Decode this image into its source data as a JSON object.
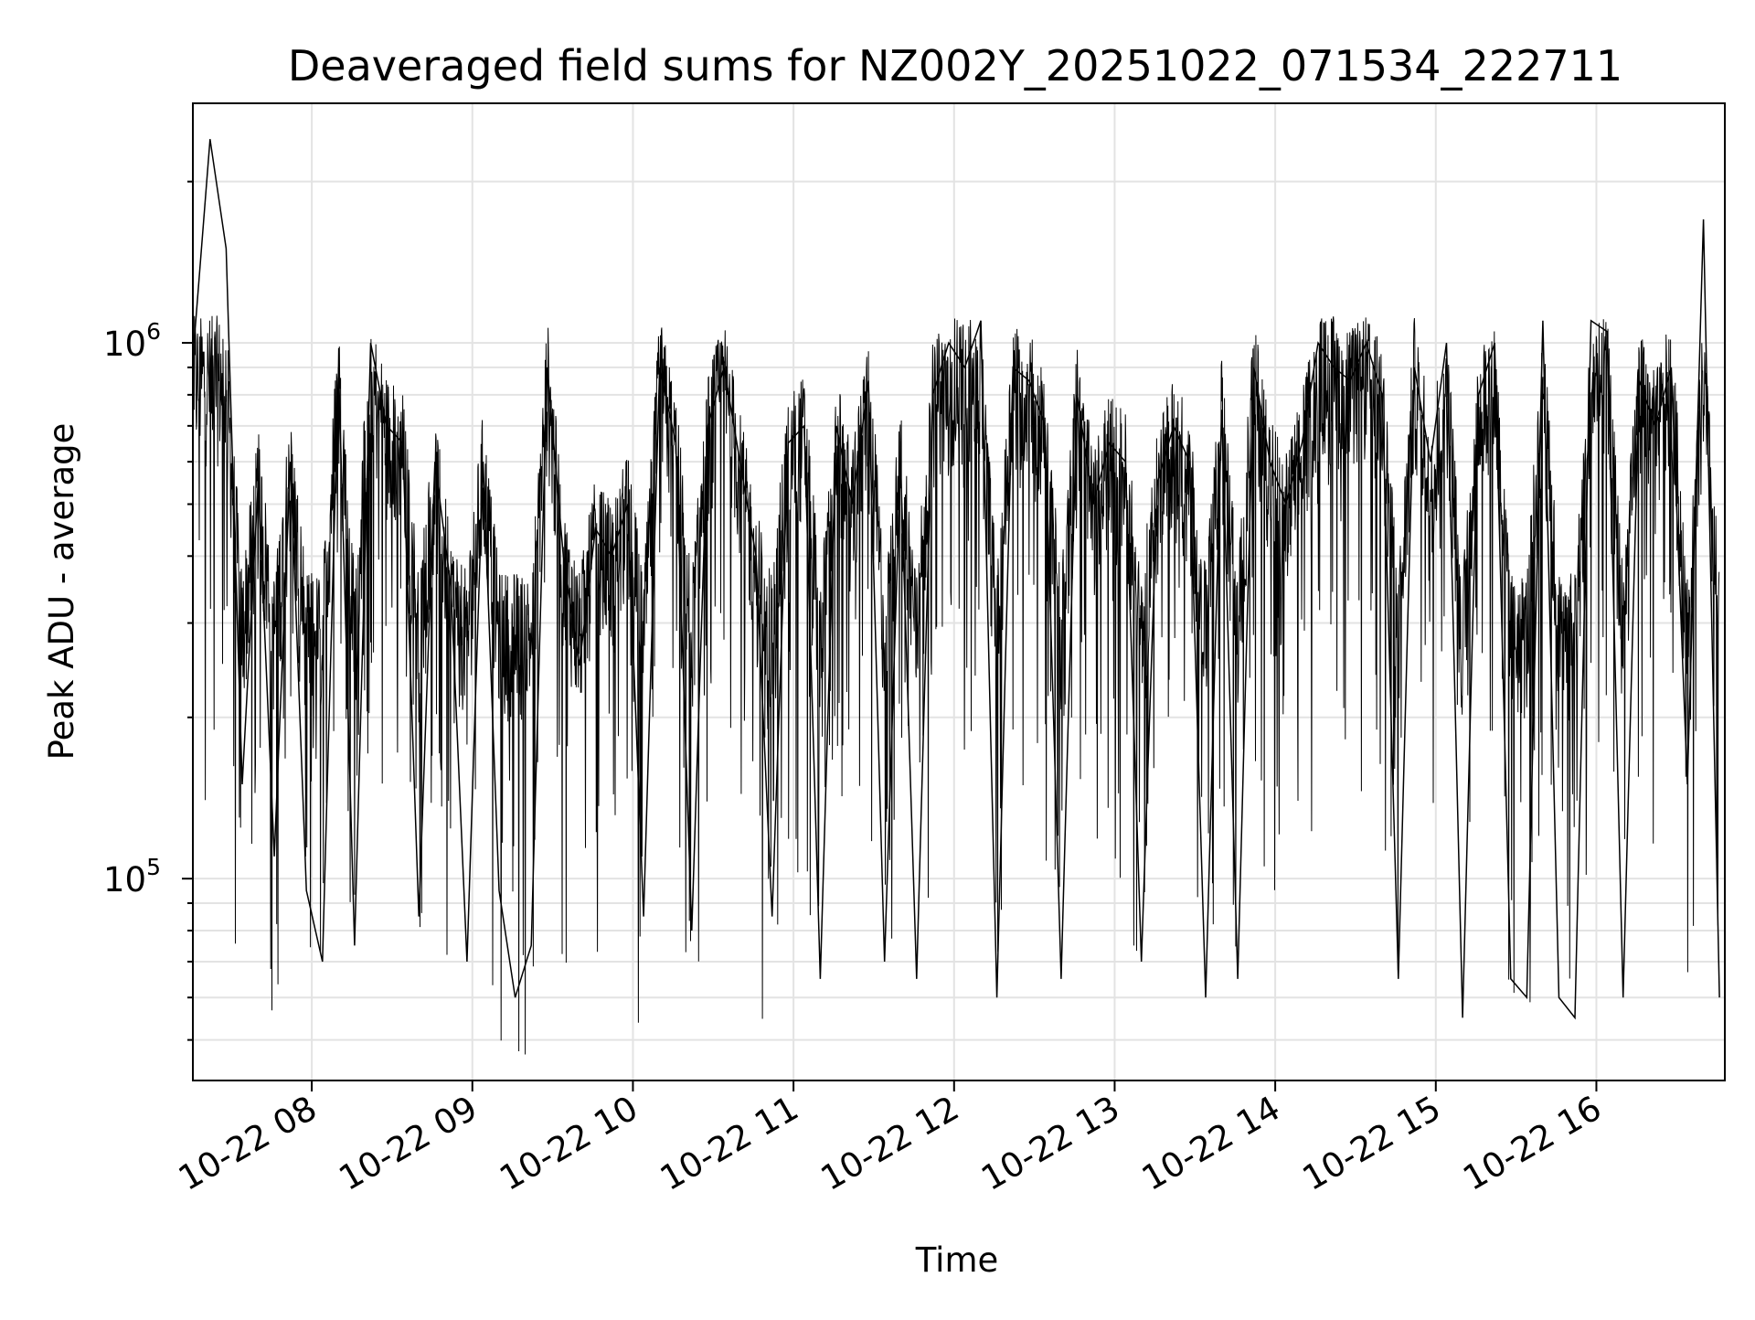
{
  "chart_data": {
    "type": "line",
    "title": "Deaveraged field sums for NZ002Y_20251022_071534_222711",
    "xlabel": "Time",
    "ylabel": "Peak ADU - average",
    "y_scale": "log",
    "ylim": [
      42000,
      2800000
    ],
    "xlim": [
      "2025-10-22 07:15:34",
      "2025-10-22 16:48:00"
    ],
    "x_ticks": [
      "10-22 08",
      "10-22 09",
      "10-22 10",
      "10-22 11",
      "10-22 12",
      "10-22 13",
      "10-22 14",
      "10-22 15",
      "10-22 16"
    ],
    "y_ticks": [
      {
        "base": "10",
        "exp": "5",
        "value": 100000
      },
      {
        "base": "10",
        "exp": "6",
        "value": 1000000
      }
    ],
    "grid": true,
    "line_color": "#000000",
    "series": [
      {
        "x": [
          "07:16",
          "07:22",
          "07:28",
          "07:34",
          "07:40",
          "07:46",
          "07:52",
          "07:58",
          "08:04",
          "08:10",
          "08:16",
          "08:22",
          "08:28",
          "08:34",
          "08:40",
          "08:46",
          "08:52",
          "08:58",
          "09:04",
          "09:10",
          "09:16",
          "09:22",
          "09:28",
          "09:34",
          "09:40",
          "09:46",
          "09:52",
          "09:58",
          "10:04",
          "10:10",
          "10:16",
          "10:22",
          "10:28",
          "10:34",
          "10:40",
          "10:46",
          "10:52",
          "10:58",
          "11:04",
          "11:10",
          "11:16",
          "11:22",
          "11:28",
          "11:34",
          "11:40",
          "11:46",
          "11:52",
          "11:58",
          "12:04",
          "12:10",
          "12:16",
          "12:22",
          "12:28",
          "12:34",
          "12:40",
          "12:46",
          "12:52",
          "12:58",
          "13:04",
          "13:10",
          "13:16",
          "13:22",
          "13:28",
          "13:34",
          "13:40",
          "13:46",
          "13:52",
          "13:58",
          "14:04",
          "14:10",
          "14:16",
          "14:22",
          "14:28",
          "14:34",
          "14:40",
          "14:46",
          "14:52",
          "14:58",
          "15:04",
          "15:10",
          "15:16",
          "15:22",
          "15:28",
          "15:34",
          "15:40",
          "15:46",
          "15:52",
          "15:58",
          "16:04",
          "16:10",
          "16:16",
          "16:22",
          "16:28",
          "16:34",
          "16:40",
          "16:46"
        ],
        "y": [
          1000000,
          2400000,
          1500000,
          150000,
          550000,
          110000,
          600000,
          95000,
          70000,
          900000,
          75000,
          1000000,
          700000,
          650000,
          85000,
          600000,
          350000,
          70000,
          600000,
          95000,
          60000,
          75000,
          900000,
          400000,
          250000,
          450000,
          400000,
          500000,
          85000,
          900000,
          650000,
          80000,
          700000,
          900000,
          600000,
          400000,
          85000,
          650000,
          700000,
          65000,
          700000,
          500000,
          850000,
          70000,
          600000,
          65000,
          800000,
          1000000,
          900000,
          1100000,
          60000,
          900000,
          850000,
          700000,
          65000,
          800000,
          500000,
          650000,
          600000,
          70000,
          550000,
          700000,
          600000,
          60000,
          750000,
          65000,
          900000,
          600000,
          500000,
          650000,
          1000000,
          900000,
          850000,
          1000000,
          800000,
          65000,
          900000,
          600000,
          1000000,
          55000,
          800000,
          1000000,
          65000,
          60000,
          1100000,
          60000,
          55000,
          1100000,
          1050000,
          60000,
          850000,
          700000,
          900000,
          150000,
          1700000,
          60000
        ]
      }
    ]
  }
}
